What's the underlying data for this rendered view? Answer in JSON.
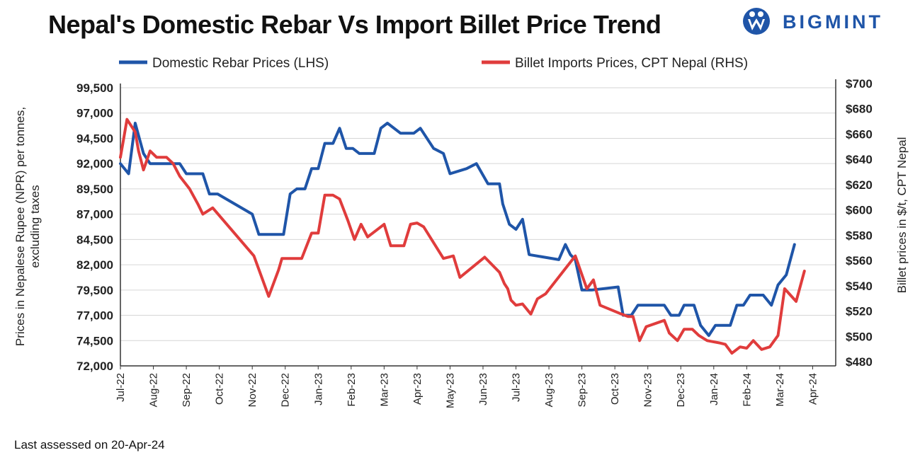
{
  "header": {
    "title": "Nepal's Domestic Rebar Vs Import Billet Price Trend",
    "logo_text": "BIGMINT"
  },
  "footer": {
    "note": "Last assessed on 20-Apr-24"
  },
  "colors": {
    "rebar": "#1f55a8",
    "billet": "#e03c3c",
    "logo": "#1f55a8"
  },
  "chart_data": {
    "type": "line",
    "ylabel": "Prices in Nepalese Rupee (NPR) per tonnes, excluding taxes",
    "ylabel_lines": [
      "Prices in Nepalese Rupee (NPR) per tonnes,",
      "excluding taxes"
    ],
    "y2label": "Billet prices in $/t, CPT Nepal",
    "ylim": [
      72000,
      99500
    ],
    "y_ticks": [
      "99,500",
      "97,000",
      "94,500",
      "92,000",
      "89,500",
      "87,000",
      "84,500",
      "82,000",
      "79,500",
      "77,000",
      "74,500",
      "72,000"
    ],
    "y2lim": [
      480,
      700
    ],
    "y2_ticks": [
      "$700",
      "$680",
      "$660",
      "$640",
      "$620",
      "$600",
      "$580",
      "$560",
      "$540",
      "$520",
      "$500",
      "$480"
    ],
    "x_ticks": [
      "Jul-22",
      "Aug-22",
      "Sep-22",
      "Oct-22",
      "Nov-22",
      "Dec-22",
      "Jan-23",
      "Feb-23",
      "Mar-23",
      "Apr-23",
      "May-23",
      "Jun-23",
      "Jul-23",
      "Aug-23",
      "Sep-23",
      "Oct-23",
      "Nov-23",
      "Dec-23",
      "Jan-24",
      "Feb-24",
      "Mar-24",
      "Apr-24"
    ],
    "x_range_months": [
      0,
      21.7
    ],
    "legend_position": "top",
    "series": [
      {
        "name": "Domestic Rebar Prices (LHS)",
        "axis": "left",
        "points": [
          [
            0.0,
            92000
          ],
          [
            0.25,
            91000
          ],
          [
            0.45,
            96000
          ],
          [
            0.7,
            93000
          ],
          [
            0.9,
            92000
          ],
          [
            1.5,
            92000
          ],
          [
            1.8,
            92000
          ],
          [
            2.0,
            91000
          ],
          [
            2.5,
            91000
          ],
          [
            2.7,
            89000
          ],
          [
            2.95,
            89000
          ],
          [
            4.0,
            87000
          ],
          [
            4.2,
            85000
          ],
          [
            4.95,
            85000
          ],
          [
            5.15,
            89000
          ],
          [
            5.35,
            89500
          ],
          [
            5.6,
            89500
          ],
          [
            5.8,
            91500
          ],
          [
            6.0,
            91500
          ],
          [
            6.2,
            94000
          ],
          [
            6.45,
            94000
          ],
          [
            6.65,
            95500
          ],
          [
            6.85,
            93500
          ],
          [
            7.05,
            93500
          ],
          [
            7.25,
            93000
          ],
          [
            7.7,
            93000
          ],
          [
            7.9,
            95500
          ],
          [
            8.1,
            96000
          ],
          [
            8.5,
            95000
          ],
          [
            8.9,
            95000
          ],
          [
            9.1,
            95500
          ],
          [
            9.5,
            93500
          ],
          [
            9.8,
            93000
          ],
          [
            10.0,
            91000
          ],
          [
            10.5,
            91500
          ],
          [
            10.8,
            92000
          ],
          [
            11.15,
            90000
          ],
          [
            11.5,
            90000
          ],
          [
            11.6,
            88000
          ],
          [
            11.8,
            86000
          ],
          [
            12.0,
            85500
          ],
          [
            12.2,
            86500
          ],
          [
            12.4,
            83000
          ],
          [
            13.3,
            82500
          ],
          [
            13.5,
            84000
          ],
          [
            13.65,
            83000
          ],
          [
            13.8,
            82500
          ],
          [
            14.0,
            79500
          ],
          [
            14.3,
            79500
          ],
          [
            15.1,
            79800
          ],
          [
            15.25,
            77000
          ],
          [
            15.5,
            77000
          ],
          [
            15.7,
            78000
          ],
          [
            16.5,
            78000
          ],
          [
            16.7,
            77000
          ],
          [
            16.95,
            77000
          ],
          [
            17.1,
            78000
          ],
          [
            17.4,
            78000
          ],
          [
            17.6,
            76000
          ],
          [
            17.85,
            75000
          ],
          [
            18.05,
            76000
          ],
          [
            18.5,
            76000
          ],
          [
            18.7,
            78000
          ],
          [
            18.9,
            78000
          ],
          [
            19.1,
            79000
          ],
          [
            19.5,
            79000
          ],
          [
            19.75,
            78000
          ],
          [
            19.95,
            80000
          ],
          [
            20.2,
            81000
          ],
          [
            20.45,
            84000
          ]
        ]
      },
      {
        "name": "Billet Imports Prices, CPT Nepal (RHS)",
        "axis": "right",
        "points": [
          [
            0.0,
            645
          ],
          [
            0.1,
            660
          ],
          [
            0.2,
            675
          ],
          [
            0.45,
            665
          ],
          [
            0.55,
            650
          ],
          [
            0.7,
            635
          ],
          [
            0.9,
            650
          ],
          [
            1.1,
            645
          ],
          [
            1.4,
            645
          ],
          [
            1.6,
            640
          ],
          [
            1.8,
            630
          ],
          [
            2.1,
            620
          ],
          [
            2.35,
            608
          ],
          [
            2.5,
            600
          ],
          [
            2.8,
            605
          ],
          [
            4.05,
            567
          ],
          [
            4.5,
            535
          ],
          [
            4.8,
            556
          ],
          [
            4.9,
            565
          ],
          [
            5.5,
            565
          ],
          [
            5.8,
            585
          ],
          [
            6.0,
            585
          ],
          [
            6.2,
            615
          ],
          [
            6.45,
            615
          ],
          [
            6.65,
            612
          ],
          [
            6.9,
            595
          ],
          [
            7.1,
            580
          ],
          [
            7.3,
            592
          ],
          [
            7.5,
            582
          ],
          [
            8.0,
            592
          ],
          [
            8.2,
            575
          ],
          [
            8.6,
            575
          ],
          [
            8.8,
            592
          ],
          [
            9.0,
            593
          ],
          [
            9.2,
            590
          ],
          [
            9.8,
            565
          ],
          [
            10.1,
            567
          ],
          [
            10.3,
            550
          ],
          [
            11.05,
            566
          ],
          [
            11.5,
            554
          ],
          [
            11.65,
            545
          ],
          [
            11.75,
            541
          ],
          [
            11.85,
            532
          ],
          [
            12.0,
            528
          ],
          [
            12.2,
            529
          ],
          [
            12.45,
            521
          ],
          [
            12.65,
            533
          ],
          [
            12.9,
            537
          ],
          [
            13.8,
            567
          ],
          [
            14.15,
            541
          ],
          [
            14.35,
            548
          ],
          [
            14.55,
            528
          ],
          [
            15.2,
            521
          ],
          [
            15.4,
            519
          ],
          [
            15.55,
            519
          ],
          [
            15.75,
            500
          ],
          [
            15.95,
            511
          ],
          [
            16.5,
            516
          ],
          [
            16.65,
            506
          ],
          [
            16.9,
            500
          ],
          [
            17.1,
            509
          ],
          [
            17.35,
            509
          ],
          [
            17.55,
            504
          ],
          [
            17.8,
            500
          ],
          [
            18.2,
            498
          ],
          [
            18.35,
            497
          ],
          [
            18.55,
            490
          ],
          [
            18.8,
            495
          ],
          [
            19.0,
            494
          ],
          [
            19.2,
            500
          ],
          [
            19.45,
            493
          ],
          [
            19.7,
            495
          ],
          [
            19.95,
            504
          ],
          [
            20.15,
            541
          ],
          [
            20.5,
            531
          ],
          [
            20.75,
            555
          ]
        ]
      }
    ]
  }
}
